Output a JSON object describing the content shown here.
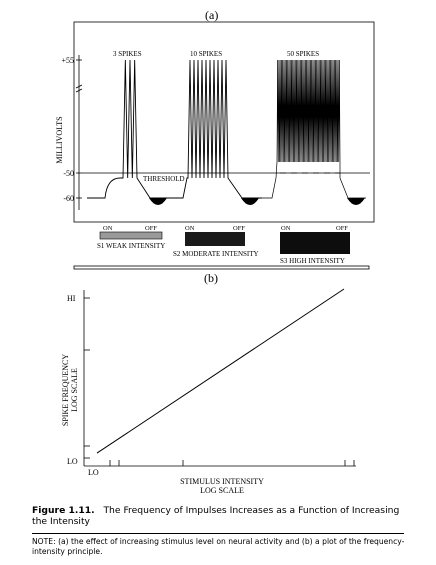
{
  "panel_a": {
    "label": "(a)",
    "ylabel": "MILLIVOLTS",
    "y_ticks": [
      "+55",
      "-50",
      "-60"
    ],
    "threshold_label": "THRESHOLD",
    "spike_counts": [
      "3 SPIKES",
      "10 SPIKES",
      "50 SPIKES"
    ],
    "stim_on_label": "ON",
    "stim_off_label": "OFF",
    "stimuli": [
      "S1 WEAK INTENSITY",
      "S2 MODERATE INTENSITY",
      "S3 HIGH INTENSITY"
    ],
    "spikes_per_stimulus": [
      3,
      10,
      50
    ]
  },
  "panel_b": {
    "label": "(b)",
    "chart_data": {
      "type": "line",
      "title": "",
      "xlabel_line1": "STIMULUS INTENSITY",
      "xlabel_line2": "LOG SCALE",
      "ylabel_line1": "SPIKE FREQUENCY",
      "ylabel_line2": "LOG SCALE",
      "x_tick_lo": "LO",
      "y_tick_lo": "LO",
      "y_tick_hi": "HI",
      "series": [
        {
          "values": [
            {
              "x": 0.05,
              "y": 0.05
            },
            {
              "x": 1.0,
              "y": 1.0
            }
          ]
        }
      ]
    }
  },
  "caption": {
    "label": "Figure 1.11.",
    "text": "The Frequency of Impulses Increases as a Function of Increasing the Intensity"
  },
  "note": "NOTE: (a) the effect of increasing stimulus level on neural activity and (b) a plot of the frequency-intensity principle."
}
